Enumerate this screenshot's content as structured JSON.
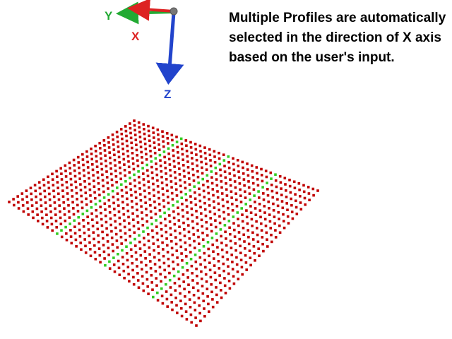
{
  "caption": "Multiple Profiles are automatically selected in the direction of X axis based on the user's input.",
  "axes": {
    "x": {
      "label": "X",
      "color": "#dd2222"
    },
    "y": {
      "label": "Y",
      "color": "#22aa33"
    },
    "z": {
      "label": "Z",
      "color": "#2244cc"
    },
    "origin_color": "#777777"
  },
  "grid": {
    "rows": 30,
    "cols": 40,
    "point_color": "#c00000",
    "selected_color": "#33cc22",
    "selected_columns": [
      10,
      20,
      30
    ]
  }
}
